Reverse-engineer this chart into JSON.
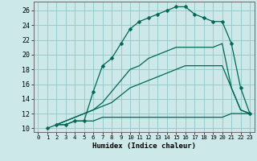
{
  "xlabel": "Humidex (Indice chaleur)",
  "ylabel": "",
  "bg_color": "#cce8e8",
  "grid_color": "#99cccc",
  "line_color": "#006655",
  "xlim": [
    -0.5,
    23.5
  ],
  "ylim": [
    9.5,
    27.2
  ],
  "xticks": [
    0,
    1,
    2,
    3,
    4,
    5,
    6,
    7,
    8,
    9,
    10,
    11,
    12,
    13,
    14,
    15,
    16,
    17,
    18,
    19,
    20,
    21,
    22,
    23
  ],
  "yticks": [
    10,
    12,
    14,
    16,
    18,
    20,
    22,
    24,
    26
  ],
  "curve1_x": [
    1,
    2,
    3,
    4,
    5,
    6,
    7,
    8,
    9,
    10,
    11,
    12,
    13,
    14,
    15,
    16,
    17,
    18,
    19,
    20,
    21,
    22,
    23
  ],
  "curve1_y": [
    10,
    10.5,
    10.5,
    11,
    11,
    15,
    18.5,
    19.5,
    21.5,
    23.5,
    24.5,
    25,
    25.5,
    26.0,
    26.5,
    26.5,
    25.5,
    25,
    24.5,
    24.5,
    21.5,
    15.5,
    12
  ],
  "curve2_x": [
    2,
    3,
    4,
    5,
    6,
    7,
    8,
    9,
    10,
    11,
    12,
    13,
    14,
    15,
    16,
    17,
    18,
    19,
    20,
    21,
    22,
    23
  ],
  "curve2_y": [
    10.5,
    10.5,
    11,
    11,
    11.0,
    11.5,
    11.5,
    11.5,
    11.5,
    11.5,
    11.5,
    11.5,
    11.5,
    11.5,
    11.5,
    11.5,
    11.5,
    11.5,
    11.5,
    12,
    12,
    12
  ],
  "curve3_x": [
    2,
    3,
    4,
    5,
    6,
    7,
    8,
    9,
    10,
    11,
    12,
    13,
    14,
    15,
    16,
    17,
    18,
    19,
    20,
    21,
    22,
    23
  ],
  "curve3_y": [
    10.5,
    11,
    11.5,
    12,
    12.5,
    13,
    13.5,
    14.5,
    15.5,
    16,
    16.5,
    17,
    17.5,
    18,
    18.5,
    18.5,
    18.5,
    18.5,
    18.5,
    15.5,
    12.5,
    12
  ],
  "curve4_x": [
    2,
    3,
    4,
    5,
    6,
    7,
    8,
    9,
    10,
    11,
    12,
    13,
    14,
    15,
    16,
    17,
    18,
    19,
    20,
    21,
    22,
    23
  ],
  "curve4_y": [
    10.5,
    11,
    11.5,
    12,
    12.5,
    13.5,
    15,
    16.5,
    18,
    18.5,
    19.5,
    20,
    20.5,
    21,
    21,
    21,
    21,
    21,
    21.5,
    15.5,
    12.5,
    12
  ]
}
